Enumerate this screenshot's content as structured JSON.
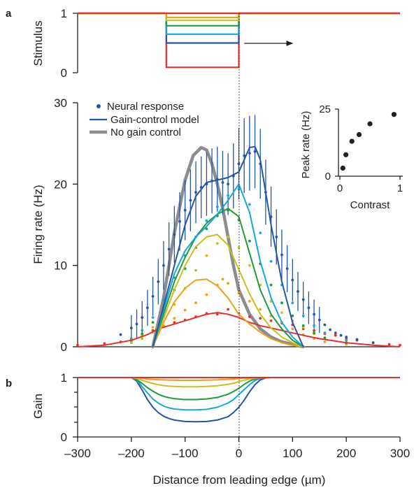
{
  "panels": {
    "a": "a",
    "b": "b"
  },
  "colors": {
    "axis": "#231f20",
    "grey": "#8c8c8e",
    "series": [
      "#e8302a",
      "#e8a21c",
      "#c9c11a",
      "#1f9b3b",
      "#1aa6d9",
      "#2456a6"
    ]
  },
  "stimulus": {
    "ylabel": "Stimulus",
    "yticks": [
      "1",
      "0"
    ],
    "x": [
      -300,
      -135,
      -135,
      0,
      0,
      300
    ],
    "levels": [
      0.93,
      0.88,
      0.79,
      0.65,
      0.5,
      0.09
    ],
    "arrow": [
      10,
      100
    ]
  },
  "chart_data": [
    {
      "type": "line",
      "panel": "a-main",
      "title": "",
      "xlabel": "Distance from leading edge (µm)",
      "ylabel": "Firing rate (Hz)",
      "xlim": [
        -300,
        300
      ],
      "ylim": [
        0,
        30
      ],
      "yticks": [
        "0",
        "10",
        "20",
        "30"
      ],
      "legend": {
        "position": "top-left",
        "entries": [
          {
            "label": "Neural response",
            "style": "dots"
          },
          {
            "label": "Gain-control model",
            "style": "line"
          },
          {
            "label": "No gain control",
            "style": "grey-line"
          }
        ]
      },
      "nogain": {
        "x": [
          -160,
          -140,
          -120,
          -100,
          -85,
          -70,
          -60,
          -50,
          -40,
          -30,
          -20,
          -10,
          0,
          20,
          40,
          60,
          80,
          100,
          120
        ],
        "y": [
          0,
          6,
          14,
          20.5,
          23.5,
          24.5,
          24.2,
          22.5,
          20,
          17,
          13.5,
          10,
          7,
          4,
          2.2,
          1.2,
          0.6,
          0.3,
          0
        ]
      },
      "model": [
        {
          "x": [
            -300,
            -250,
            -200,
            -170,
            -150,
            -120,
            -100,
            -80,
            -60,
            -40,
            -20,
            0,
            20,
            40,
            60,
            80,
            100,
            120,
            150,
            200,
            250,
            300
          ],
          "y": [
            0,
            0.2,
            0.8,
            1.5,
            2.2,
            2.8,
            3.2,
            3.6,
            4.0,
            4.2,
            4.0,
            3.6,
            3.0,
            2.6,
            2.3,
            2.0,
            1.7,
            1.4,
            1.0,
            0.5,
            0.2,
            0
          ]
        },
        {
          "x": [
            -160,
            -140,
            -120,
            -100,
            -80,
            -60,
            -40,
            -20,
            0,
            20,
            40,
            60,
            80,
            100,
            120
          ],
          "y": [
            0,
            3,
            5.5,
            7.2,
            8.2,
            8.3,
            7.5,
            6,
            4,
            2.8,
            1.8,
            1,
            0.5,
            0.2,
            0
          ]
        },
        {
          "x": [
            -160,
            -140,
            -120,
            -100,
            -80,
            -60,
            -40,
            -20,
            0,
            20,
            40,
            60,
            80,
            100,
            120
          ],
          "y": [
            0,
            3.5,
            7,
            10,
            12.3,
            13.5,
            13.8,
            12.5,
            9.5,
            6.5,
            4,
            2.3,
            1.2,
            0.5,
            0
          ]
        },
        {
          "x": [
            -160,
            -140,
            -120,
            -100,
            -80,
            -60,
            -40,
            -20,
            0,
            20,
            40,
            60,
            80,
            100,
            120
          ],
          "y": [
            0,
            4,
            8,
            11,
            13.5,
            15.2,
            16.3,
            17,
            16,
            11.5,
            7,
            4,
            2.2,
            0.8,
            0
          ]
        },
        {
          "x": [
            -160,
            -140,
            -120,
            -100,
            -80,
            -60,
            -40,
            -20,
            0,
            20,
            40,
            60,
            80,
            100,
            120
          ],
          "y": [
            0,
            4.5,
            9,
            11.8,
            13.5,
            14.8,
            16.3,
            18,
            20,
            16.5,
            10.5,
            6,
            3,
            1.2,
            0
          ]
        },
        {
          "x": [
            -160,
            -140,
            -120,
            -100,
            -80,
            -60,
            -40,
            -20,
            0,
            20,
            30,
            40,
            60,
            80,
            100,
            120
          ],
          "y": [
            0,
            5,
            10,
            15,
            18.5,
            20.2,
            20.5,
            20.8,
            21.5,
            24.5,
            24.6,
            23,
            15,
            8,
            3,
            0
          ]
        }
      ],
      "dots": [
        {
          "x": [
            -300,
            -250,
            -220,
            -200,
            -180,
            -160,
            -140,
            -120,
            -100,
            -80,
            -60,
            -40,
            -20,
            0,
            20,
            40,
            60,
            80,
            100,
            120,
            140,
            160,
            180,
            200,
            220,
            250,
            280,
            300
          ],
          "y": [
            0.2,
            0.4,
            0.6,
            0.9,
            1.4,
            2.0,
            2.6,
            3.0,
            3.3,
            3.7,
            4.1,
            4.0,
            4.6,
            4.1,
            3.7,
            3.5,
            3.2,
            2.9,
            2.7,
            2.2,
            2.0,
            1.6,
            1.4,
            1.0,
            0.8,
            0.5,
            0.3,
            0.2
          ]
        },
        {
          "x": [
            -200,
            -180,
            -160,
            -140,
            -120,
            -100,
            -80,
            -60,
            -40,
            -30,
            -20,
            0,
            20,
            40,
            60,
            80,
            100,
            120,
            140,
            160,
            200
          ],
          "y": [
            0.5,
            1.0,
            1.8,
            2.6,
            3.5,
            4.5,
            5.4,
            6.4,
            7.6,
            8.3,
            7.8,
            6.6,
            5.6,
            4.6,
            3.8,
            3.0,
            2.2,
            1.5,
            1.0,
            0.6,
            0.3
          ]
        },
        {
          "x": [
            -200,
            -180,
            -160,
            -140,
            -120,
            -100,
            -80,
            -60,
            -40,
            -20,
            0,
            20,
            40,
            60,
            80,
            100,
            120,
            140,
            160,
            200
          ],
          "y": [
            0.6,
            1.3,
            2.4,
            3.6,
            5.2,
            7.2,
            9.4,
            11.2,
            12.7,
            13.5,
            12.2,
            10.0,
            7.6,
            5.6,
            4.2,
            3.2,
            2.4,
            1.6,
            1.0,
            0.4
          ]
        },
        {
          "x": [
            -200,
            -180,
            -160,
            -140,
            -120,
            -100,
            -80,
            -60,
            -40,
            -20,
            0,
            20,
            40,
            60,
            80,
            100,
            120,
            140,
            160,
            200
          ],
          "y": [
            0.8,
            1.6,
            3.0,
            4.8,
            7.0,
            9.6,
            12.2,
            14.5,
            16.1,
            16.8,
            15.6,
            13.0,
            10.2,
            7.6,
            5.4,
            3.8,
            2.6,
            1.7,
            1.1,
            0.5
          ]
        },
        {
          "x": [
            -200,
            -180,
            -160,
            -140,
            -120,
            -100,
            -80,
            -60,
            -40,
            -20,
            0,
            20,
            40,
            60,
            80,
            100,
            120,
            140,
            160,
            200
          ],
          "y": [
            1.0,
            2.0,
            3.6,
            5.8,
            8.5,
            11.2,
            13.5,
            15.5,
            17.2,
            18.6,
            19.4,
            17.5,
            14.0,
            10.5,
            7.6,
            5.4,
            3.8,
            2.6,
            1.7,
            0.8
          ]
        },
        {
          "x": [
            -220,
            -200,
            -190,
            -180,
            -170,
            -160,
            -150,
            -140,
            -130,
            -120,
            -110,
            -100,
            -90,
            -80,
            -70,
            -60,
            -50,
            -40,
            -30,
            -20,
            -10,
            0,
            10,
            20,
            30,
            40,
            50,
            60,
            70,
            80,
            90,
            100,
            110,
            120,
            130,
            140,
            150,
            160,
            170,
            180,
            190,
            200,
            220,
            250
          ],
          "y": [
            1.5,
            2.3,
            2.8,
            3.6,
            4.8,
            6.2,
            8.0,
            10.0,
            12.0,
            13.8,
            15.4,
            16.8,
            18.0,
            19.0,
            19.6,
            20.0,
            20.4,
            20.6,
            20.2,
            20.0,
            21.0,
            22.5,
            23.5,
            23.8,
            24.0,
            22.5,
            19.0,
            16.0,
            13.5,
            11.3,
            9.6,
            8.2,
            6.8,
            5.8,
            4.8,
            4.0,
            3.3,
            2.7,
            2.1,
            1.7,
            1.4,
            1.2,
            0.9,
            0.5
          ]
        }
      ],
      "errorbars": {
        "x": [
          -200,
          -190,
          -180,
          -170,
          -160,
          -150,
          -140,
          -130,
          -120,
          -110,
          -100,
          -90,
          -80,
          -70,
          -60,
          -50,
          -40,
          -30,
          -20,
          -10,
          0,
          10,
          20,
          30,
          40,
          50,
          60,
          70,
          80,
          90,
          100,
          110,
          120,
          130,
          140,
          150
        ],
        "y": [
          2.3,
          2.8,
          3.6,
          4.8,
          6.2,
          8.0,
          10.0,
          12.0,
          13.8,
          15.4,
          16.8,
          18.0,
          19.0,
          19.6,
          20.0,
          20.4,
          20.6,
          20.2,
          20.0,
          21.0,
          22.5,
          23.5,
          23.8,
          24.0,
          22.5,
          19.0,
          16.0,
          13.5,
          11.3,
          9.6,
          8.2,
          6.8,
          5.8,
          4.8,
          4.0,
          3.3
        ],
        "err": [
          1.6,
          1.8,
          2.0,
          2.2,
          2.4,
          2.8,
          3.0,
          3.3,
          3.5,
          3.6,
          3.7,
          3.8,
          3.8,
          3.8,
          3.9,
          4.0,
          4.0,
          3.9,
          3.8,
          4.0,
          4.4,
          4.6,
          4.6,
          4.5,
          4.3,
          4.0,
          3.7,
          3.4,
          3.1,
          2.9,
          2.6,
          2.4,
          2.2,
          2.0,
          1.8,
          1.6
        ]
      }
    },
    {
      "type": "scatter",
      "panel": "a-inset",
      "title": "",
      "xlabel": "Contrast",
      "ylabel": "Peak rate (Hz)",
      "xlim": [
        0,
        1
      ],
      "ylim": [
        0,
        25
      ],
      "xticks": [
        "0",
        "1"
      ],
      "yticks": [
        "0",
        "25"
      ],
      "x": [
        0.05,
        0.1,
        0.2,
        0.32,
        0.5,
        0.9
      ],
      "y": [
        3,
        8,
        13,
        15.5,
        19.5,
        23
      ]
    },
    {
      "type": "line",
      "panel": "b",
      "title": "",
      "xlabel": "Distance from leading edge (µm)",
      "ylabel": "Gain",
      "xlim": [
        -300,
        300
      ],
      "ylim": [
        0,
        1
      ],
      "yticks": [
        "1",
        "0"
      ],
      "xticks": [
        "–300",
        "–200",
        "–100",
        "0",
        "100",
        "200",
        "300"
      ],
      "x": [
        -300,
        -200,
        -190,
        -180,
        -170,
        -160,
        -150,
        -140,
        -130,
        -120,
        -100,
        -80,
        -60,
        -40,
        -20,
        -10,
        0,
        10,
        20,
        30,
        40,
        50,
        60,
        300
      ],
      "series": [
        {
          "values": [
            1,
            1,
            1,
            1,
            1,
            1,
            1,
            1,
            1,
            1,
            1,
            1,
            1,
            1,
            1,
            1,
            1,
            1,
            1,
            1,
            1,
            1,
            1,
            1
          ]
        },
        {
          "values": [
            1,
            1,
            0.995,
            0.985,
            0.975,
            0.968,
            0.963,
            0.96,
            0.957,
            0.955,
            0.953,
            0.953,
            0.955,
            0.96,
            0.97,
            0.976,
            0.982,
            0.988,
            0.993,
            0.997,
            0.999,
            1,
            1,
            1
          ]
        },
        {
          "values": [
            1,
            1,
            0.985,
            0.955,
            0.925,
            0.9,
            0.88,
            0.865,
            0.855,
            0.85,
            0.845,
            0.845,
            0.85,
            0.862,
            0.885,
            0.905,
            0.93,
            0.955,
            0.975,
            0.99,
            0.998,
            1,
            1,
            1
          ]
        },
        {
          "values": [
            1,
            1,
            0.965,
            0.9,
            0.83,
            0.77,
            0.72,
            0.685,
            0.66,
            0.645,
            0.63,
            0.63,
            0.64,
            0.665,
            0.72,
            0.765,
            0.82,
            0.885,
            0.94,
            0.975,
            0.993,
            1,
            1,
            1
          ]
        },
        {
          "values": [
            1,
            1,
            0.955,
            0.85,
            0.74,
            0.64,
            0.57,
            0.52,
            0.49,
            0.47,
            0.455,
            0.455,
            0.465,
            0.5,
            0.57,
            0.63,
            0.71,
            0.8,
            0.88,
            0.95,
            0.985,
            1,
            1,
            1
          ]
        },
        {
          "values": [
            1,
            1,
            0.94,
            0.79,
            0.63,
            0.5,
            0.41,
            0.35,
            0.31,
            0.285,
            0.26,
            0.255,
            0.26,
            0.285,
            0.34,
            0.41,
            0.5,
            0.62,
            0.76,
            0.88,
            0.96,
            0.995,
            1,
            1
          ]
        }
      ]
    }
  ]
}
